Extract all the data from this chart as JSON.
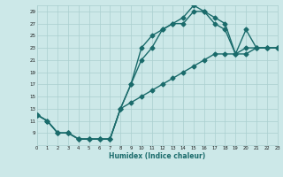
{
  "xlabel": "Humidex (Indice chaleur)",
  "bg_color": "#cce8e8",
  "grid_color": "#aacfcf",
  "line_color": "#1a6b6b",
  "markersize": 2.5,
  "linewidth": 1.0,
  "curve1_x": [
    0,
    1,
    2,
    3,
    4,
    5,
    6,
    7,
    8,
    9,
    10,
    11,
    12,
    13,
    14,
    15,
    16,
    17,
    18,
    19,
    20,
    21,
    22,
    23
  ],
  "curve1_y": [
    12,
    11,
    9,
    9,
    8,
    8,
    8,
    8,
    13,
    17,
    23,
    25,
    26,
    27,
    27,
    29,
    29,
    27,
    26,
    22,
    26,
    23,
    23,
    23
  ],
  "curve2_x": [
    0,
    1,
    2,
    3,
    4,
    5,
    6,
    7,
    8,
    9,
    10,
    11,
    12,
    13,
    14,
    15,
    16,
    17,
    18,
    19,
    20,
    21,
    22,
    23
  ],
  "curve2_y": [
    12,
    11,
    9,
    9,
    8,
    8,
    8,
    8,
    13,
    17,
    21,
    23,
    26,
    27,
    28,
    30,
    29,
    28,
    27,
    22,
    23,
    23,
    23,
    23
  ],
  "curve3_x": [
    0,
    1,
    2,
    3,
    4,
    5,
    6,
    7,
    8,
    9,
    10,
    11,
    12,
    13,
    14,
    15,
    16,
    17,
    18,
    19,
    20,
    21,
    22,
    23
  ],
  "curve3_y": [
    12,
    11,
    9,
    9,
    8,
    8,
    8,
    8,
    13,
    14,
    15,
    16,
    17,
    18,
    19,
    20,
    21,
    22,
    22,
    22,
    22,
    23,
    23,
    23
  ],
  "xlim": [
    0,
    23
  ],
  "ylim": [
    7,
    30
  ],
  "yticks": [
    9,
    11,
    13,
    15,
    17,
    19,
    21,
    23,
    25,
    27,
    29
  ],
  "xticks": [
    0,
    1,
    2,
    3,
    4,
    5,
    6,
    7,
    8,
    9,
    10,
    11,
    12,
    13,
    14,
    15,
    16,
    17,
    18,
    19,
    20,
    21,
    22,
    23
  ]
}
